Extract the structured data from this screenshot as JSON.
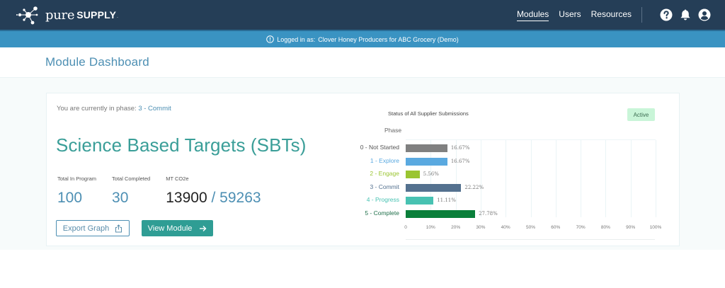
{
  "app": {
    "logo_pure": "pure",
    "logo_supply": "SUPPLY",
    "logo_tm": "."
  },
  "nav": {
    "items": [
      {
        "label": "Modules",
        "active": true
      },
      {
        "label": "Users",
        "active": false
      },
      {
        "label": "Resources",
        "active": false
      }
    ],
    "icons": [
      "help-icon",
      "bell-icon",
      "user-account-icon"
    ]
  },
  "banner": {
    "label": "Logged in as:",
    "value": "Clover Honey Producers for ABC Grocery (Demo)"
  },
  "page": {
    "title": "Module Dashboard"
  },
  "module": {
    "phase_prefix": "You are currently in phase:",
    "phase_value": "3 - Commit",
    "title": "Science Based Targets (SBTs)",
    "stats": [
      {
        "label": "Total In Program",
        "value": "100"
      },
      {
        "label": "Total Completed",
        "value": "30"
      },
      {
        "label": "MT CO2e",
        "value_primary": "13900",
        "separator": " / ",
        "value_secondary": "59263"
      }
    ],
    "buttons": {
      "export": "Export Graph",
      "view": "View Module"
    },
    "status_badge": "Active",
    "status_badge_color": "#c9f5d8"
  },
  "chart_data": {
    "type": "bar",
    "orientation": "horizontal",
    "title": "Status of All Supplier Submissions",
    "ylabel": "Phase",
    "xlabel": "",
    "categories": [
      "0 - Not Started",
      "1 - Explore",
      "2 - Engage",
      "3 - Commit",
      "4 - Progress",
      "5 - Complete"
    ],
    "values": [
      16.67,
      16.67,
      5.56,
      22.22,
      11.11,
      27.78
    ],
    "value_labels": [
      "16.67%",
      "16.67%",
      "5.56%",
      "22.22%",
      "11.11%",
      "27.78%"
    ],
    "bar_colors": [
      "#808080",
      "#5aa9e0",
      "#9ac531",
      "#54718f",
      "#48c2b2",
      "#0a7f3a"
    ],
    "label_colors": [
      "#555555",
      "#5aa9e0",
      "#9ac531",
      "#54718f",
      "#48c2b2",
      "#1f6f4a"
    ],
    "x_ticks": [
      "0",
      "10%",
      "20%",
      "30%",
      "40%",
      "50%",
      "60%",
      "70%",
      "80%",
      "90%",
      "100%"
    ],
    "xlim": [
      0,
      100
    ],
    "grid": true,
    "legend": false
  }
}
